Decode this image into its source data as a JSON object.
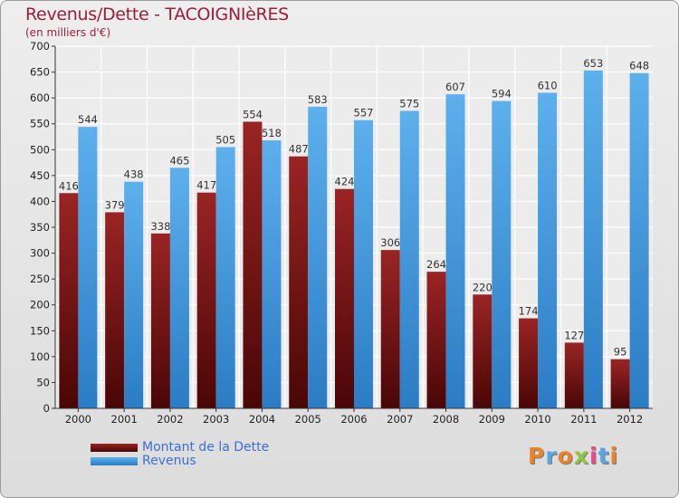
{
  "title": "Revenus/Dette - TACOIGNIèRES",
  "subtitle": "(en milliers d'€)",
  "logo_text": "Proxiti",
  "legend": {
    "debt_label": "Montant de la Dette",
    "revenue_label": "Revenus"
  },
  "colors": {
    "debt": "#8b1a1a",
    "revenue": "#4a9ee0",
    "title": "#9b1e3c",
    "legend_text": "#3a6fd8"
  },
  "chart_data": {
    "type": "bar",
    "title": "Revenus/Dette - TACOIGNIèRES",
    "ylabel": "(en milliers d'€)",
    "xlabel": "",
    "categories": [
      "2000",
      "2001",
      "2002",
      "2003",
      "2004",
      "2005",
      "2006",
      "2007",
      "2008",
      "2009",
      "2010",
      "2011",
      "2012"
    ],
    "ylim": [
      0,
      700
    ],
    "yticks": [
      0,
      50,
      100,
      150,
      200,
      250,
      300,
      350,
      400,
      450,
      500,
      550,
      600,
      650,
      700
    ],
    "grid": true,
    "legend_position": "bottom-left",
    "series": [
      {
        "name": "Montant de la Dette",
        "values": [
          416,
          379,
          338,
          417,
          554,
          487,
          424,
          306,
          264,
          220,
          174,
          127,
          95
        ]
      },
      {
        "name": "Revenus",
        "values": [
          544,
          438,
          465,
          505,
          518,
          583,
          557,
          575,
          607,
          594,
          610,
          653,
          648
        ]
      }
    ]
  }
}
